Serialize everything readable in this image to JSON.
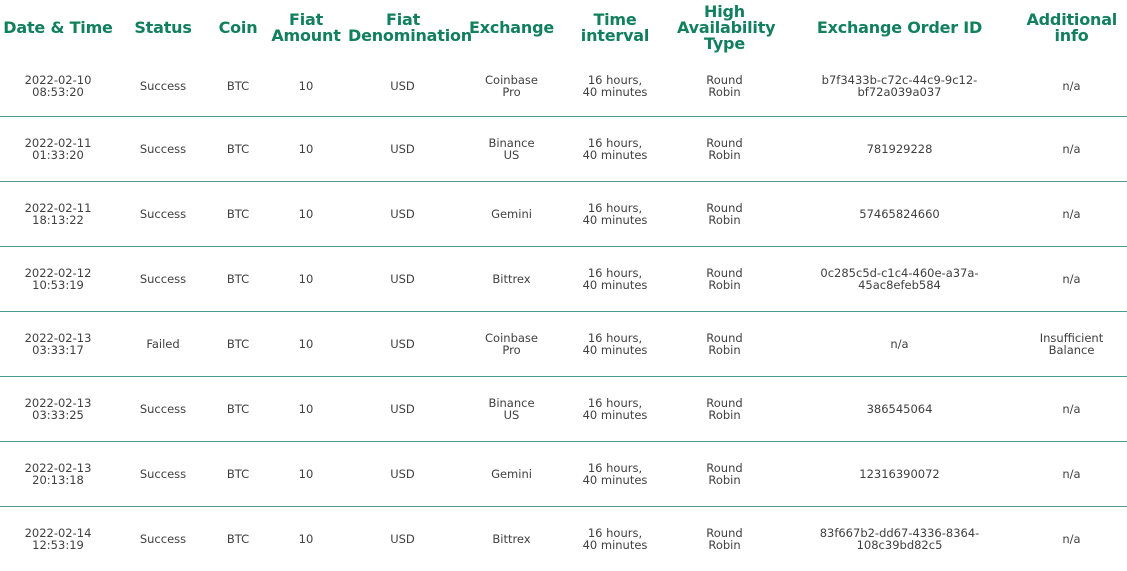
{
  "table": {
    "headers": {
      "datetime": "Date & Time",
      "status": "Status",
      "coin": "Coin",
      "fiat_amount": "Fiat Amount",
      "fiat_denomination": "Fiat Denomination",
      "exchange": "Exchange",
      "time_interval": "Time interval",
      "ha_type": "High Availability Type",
      "order_id": "Exchange Order ID",
      "additional_info": "Additional info"
    },
    "rows": [
      {
        "datetime": "2022-02-10 08:53:20",
        "status": "Success",
        "coin": "BTC",
        "fiat_amount": "10",
        "fiat_denomination": "USD",
        "exchange": "Coinbase Pro",
        "time_interval": "16 hours, 40 minutes",
        "ha_type": "Round Robin",
        "order_id": "b7f3433b-c72c-44c9-9c12-bf72a039a037",
        "additional_info": "n/a"
      },
      {
        "datetime": "2022-02-11 01:33:20",
        "status": "Success",
        "coin": "BTC",
        "fiat_amount": "10",
        "fiat_denomination": "USD",
        "exchange": "Binance US",
        "time_interval": "16 hours, 40 minutes",
        "ha_type": "Round Robin",
        "order_id": "781929228",
        "additional_info": "n/a"
      },
      {
        "datetime": "2022-02-11 18:13:22",
        "status": "Success",
        "coin": "BTC",
        "fiat_amount": "10",
        "fiat_denomination": "USD",
        "exchange": "Gemini",
        "time_interval": "16 hours, 40 minutes",
        "ha_type": "Round Robin",
        "order_id": "57465824660",
        "additional_info": "n/a"
      },
      {
        "datetime": "2022-02-12 10:53:19",
        "status": "Success",
        "coin": "BTC",
        "fiat_amount": "10",
        "fiat_denomination": "USD",
        "exchange": "Bittrex",
        "time_interval": "16 hours, 40 minutes",
        "ha_type": "Round Robin",
        "order_id": "0c285c5d-c1c4-460e-a37a-45ac8efeb584",
        "additional_info": "n/a"
      },
      {
        "datetime": "2022-02-13 03:33:17",
        "status": "Failed",
        "coin": "BTC",
        "fiat_amount": "10",
        "fiat_denomination": "USD",
        "exchange": "Coinbase Pro",
        "time_interval": "16 hours, 40 minutes",
        "ha_type": "Round Robin",
        "order_id": "n/a",
        "additional_info": "Insufficient Balance"
      },
      {
        "datetime": "2022-02-13 03:33:25",
        "status": "Success",
        "coin": "BTC",
        "fiat_amount": "10",
        "fiat_denomination": "USD",
        "exchange": "Binance US",
        "time_interval": "16 hours, 40 minutes",
        "ha_type": "Round Robin",
        "order_id": "386545064",
        "additional_info": "n/a"
      },
      {
        "datetime": "2022-02-13 20:13:18",
        "status": "Success",
        "coin": "BTC",
        "fiat_amount": "10",
        "fiat_denomination": "USD",
        "exchange": "Gemini",
        "time_interval": "16 hours, 40 minutes",
        "ha_type": "Round Robin",
        "order_id": "12316390072",
        "additional_info": "n/a"
      },
      {
        "datetime": "2022-02-14 12:53:19",
        "status": "Success",
        "coin": "BTC",
        "fiat_amount": "10",
        "fiat_denomination": "USD",
        "exchange": "Bittrex",
        "time_interval": "16 hours, 40 minutes",
        "ha_type": "Round Robin",
        "order_id": "83f667b2-dd67-4336-8364-108c39bd82c5",
        "additional_info": "n/a"
      }
    ]
  },
  "colors": {
    "header_text": "#12805c",
    "row_divider": "#4e9a8e",
    "cell_text": "#404040"
  }
}
